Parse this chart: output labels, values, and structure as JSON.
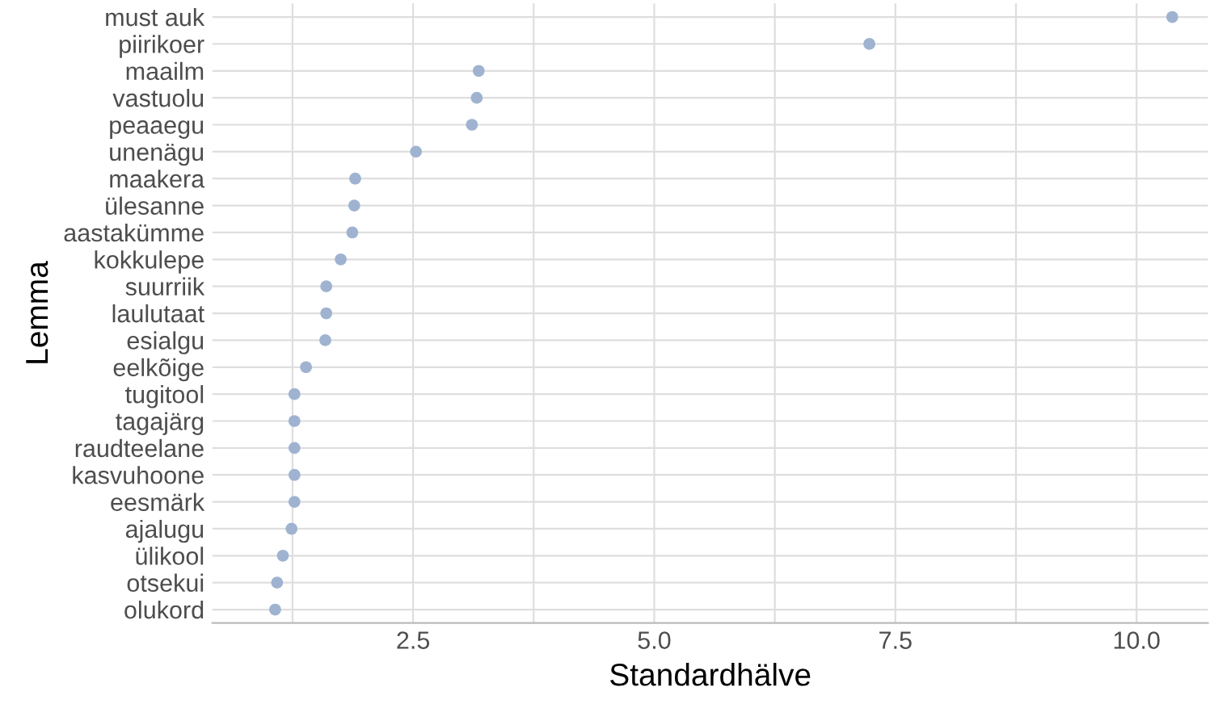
{
  "chart_data": {
    "type": "scatter",
    "xlabel": "Standardhälve",
    "ylabel": "Lemma",
    "categories": [
      "must auk",
      "piirikoer",
      "maailm",
      "vastuolu",
      "peaaegu",
      "unenägu",
      "maakera",
      "ülesanne",
      "aastakümme",
      "kokkulepe",
      "suurriik",
      "laulutaat",
      "esialgu",
      "eelkõige",
      "tugitool",
      "tagajärg",
      "raudteelane",
      "kasvuhoone",
      "eesmärk",
      "ajalugu",
      "ülikool",
      "otsekui",
      "olukord"
    ],
    "orientation": "horizontal",
    "values": [
      10.37,
      7.23,
      3.18,
      3.16,
      3.11,
      2.53,
      1.9,
      1.89,
      1.87,
      1.75,
      1.6,
      1.6,
      1.59,
      1.39,
      1.27,
      1.27,
      1.27,
      1.27,
      1.27,
      1.24,
      1.15,
      1.09,
      1.07
    ],
    "color": "#9fb3d1",
    "marker": "circle",
    "grid": true,
    "xlim": [
      0.42,
      10.74
    ],
    "xticks": [
      {
        "value": 1.25,
        "label": null
      },
      2.5,
      {
        "value": 3.75,
        "label": null
      },
      {
        "value": 5,
        "label": "5.0"
      },
      {
        "value": 6.25,
        "label": null
      },
      7.5,
      {
        "value": 8.75,
        "label": null
      },
      {
        "value": 10,
        "label": "10.0"
      }
    ]
  }
}
